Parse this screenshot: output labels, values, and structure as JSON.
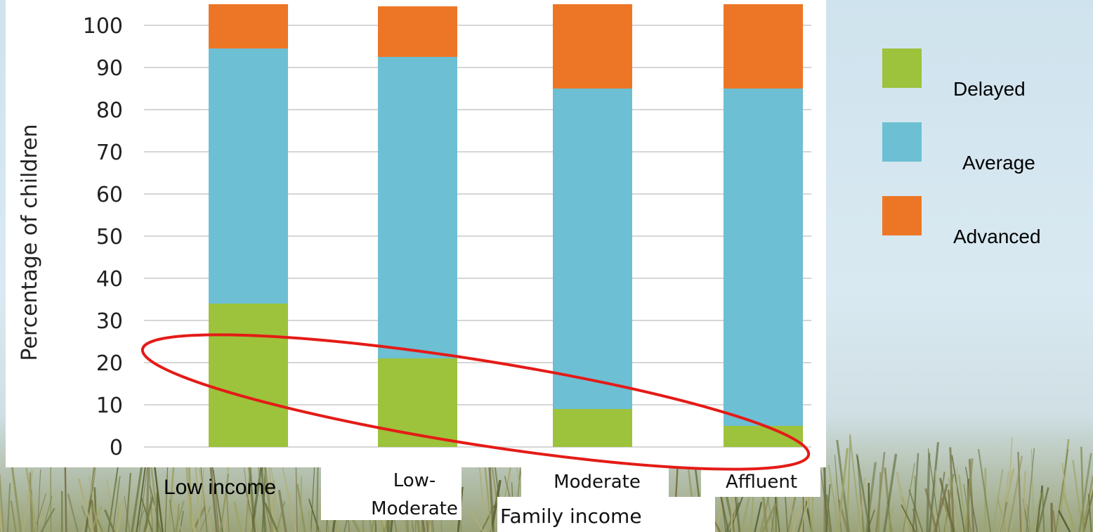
{
  "chart_data": {
    "type": "bar",
    "stacked": true,
    "categories": [
      "Low income",
      "Low-\nModerate",
      "Moderate",
      "Affluent"
    ],
    "series": [
      {
        "name": "Delayed",
        "values": [
          34,
          21,
          9,
          5
        ],
        "color": "#9dc23b"
      },
      {
        "name": "Average",
        "values": [
          60.5,
          71.5,
          76,
          80
        ],
        "color": "#6dbfd3"
      },
      {
        "name": "Advanced",
        "values": [
          10.5,
          12,
          20,
          20
        ],
        "color": "#ed7626"
      }
    ],
    "title": "",
    "xlabel": "Family income",
    "ylabel": "Percentage of children",
    "ylim": [
      0,
      100
    ],
    "yticks": [
      0,
      10,
      20,
      30,
      40,
      50,
      60,
      70,
      80,
      90,
      100
    ],
    "grid": true,
    "legend_position": "right",
    "annotation": {
      "shape": "ellipse",
      "color": "#e41b17",
      "target": "Delayed"
    }
  }
}
